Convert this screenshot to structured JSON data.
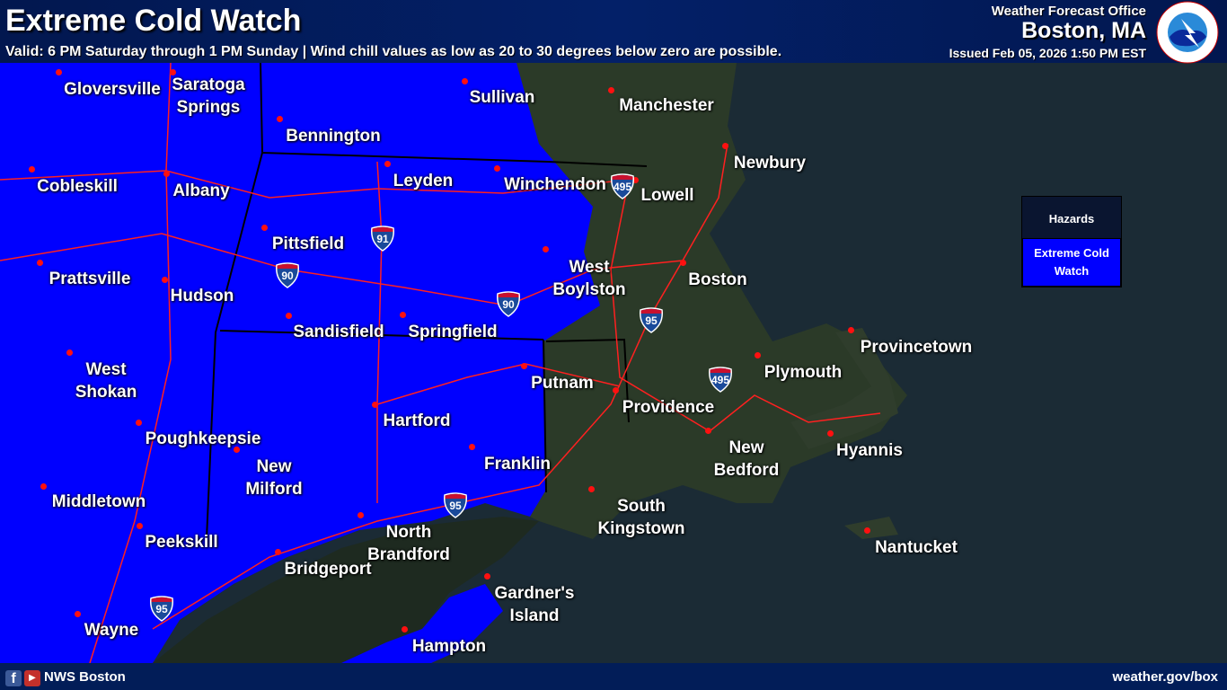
{
  "header": {
    "title": "Extreme Cold Watch",
    "valid": "Valid: 6 PM Saturday through 1 PM Sunday | Wind chill values as low as 20 to 30 degrees below zero are possible.",
    "wfo": "Weather Forecast Office",
    "office": "Boston, MA",
    "issued": "Issued Feb 05, 2026 1:50 PM EST",
    "logo_text": "NATIONAL WEATHER SERVICE"
  },
  "legend": {
    "title": "Hazards",
    "items": [
      {
        "label": "Extreme Cold Watch",
        "color": "#0000ff"
      }
    ]
  },
  "colors": {
    "watch": "#0000ff",
    "roads": "#ff2020",
    "boundaries": "#000000",
    "header": "#032068"
  },
  "cities": [
    "Gloversville",
    "Saratoga\nSprings",
    "Sullivan",
    "Manchester",
    "Bennington",
    "Newbury",
    "Cobleskill",
    "Albany",
    "Leyden",
    "Winchendon",
    "Lowell",
    "Pittsfield",
    "Prattsville",
    "Hudson",
    "West\nBoylston",
    "Boston",
    "Sandisfield",
    "Springfield",
    "West\nShokan",
    "Putnam",
    "Plymouth",
    "Provincetown",
    "Hartford",
    "Providence",
    "Poughkeepsie",
    "New\nMilford",
    "Franklin",
    "New\nBedford",
    "Hyannis",
    "Middletown",
    "South\nKingstown",
    "North\nBrandford",
    "Peekskill",
    "Bridgeport",
    "Nantucket",
    "Gardner's\nIsland",
    "Wayne",
    "Hampton"
  ],
  "shields": [
    "495",
    "91",
    "90",
    "90",
    "95",
    "495",
    "95",
    "95"
  ],
  "footer": {
    "account": "NWS Boston",
    "url": "weather.gov/box"
  }
}
